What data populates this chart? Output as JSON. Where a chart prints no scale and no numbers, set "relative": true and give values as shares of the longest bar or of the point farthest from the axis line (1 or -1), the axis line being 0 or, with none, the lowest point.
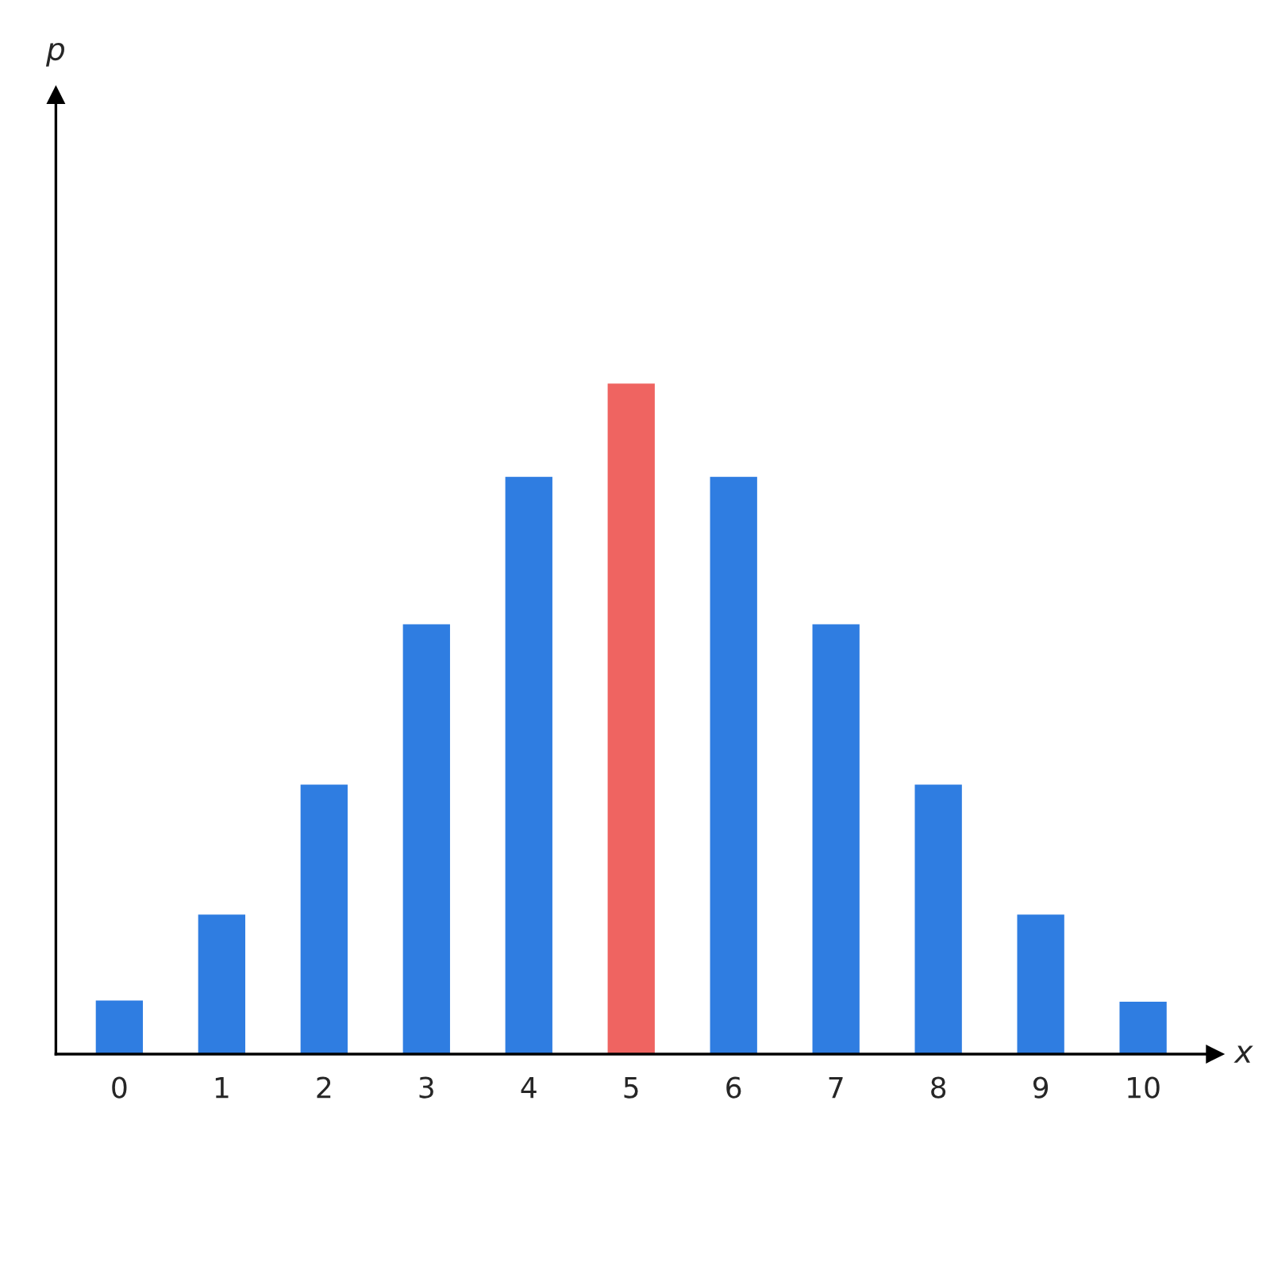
{
  "chart_data": {
    "type": "bar",
    "relative": true,
    "xlabel": "x",
    "annotations": [
      "p"
    ],
    "categories": [
      "0",
      "1",
      "2",
      "3",
      "4",
      "5",
      "6",
      "7",
      "8",
      "9",
      "10"
    ],
    "values": [
      0.08,
      0.208,
      0.402,
      0.641,
      0.861,
      1,
      0.861,
      0.641,
      0.402,
      0.208,
      0.078
    ],
    "colors": [
      "#2f7de1",
      "#2f7de1",
      "#2f7de1",
      "#2f7de1",
      "#2f7de1",
      "#ef6461",
      "#2f7de1",
      "#2f7de1",
      "#2f7de1",
      "#2f7de1",
      "#2f7de1"
    ],
    "grid": false
  }
}
